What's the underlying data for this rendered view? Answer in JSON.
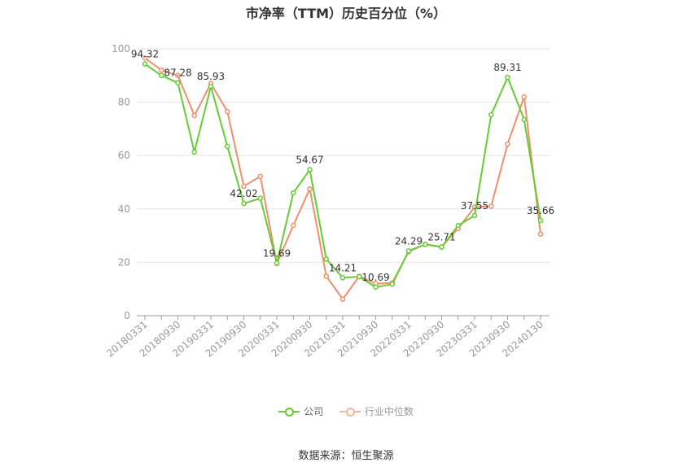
{
  "chart_data": {
    "type": "line",
    "title": "市净率（TTM）历史百分位（%）",
    "x": [
      "20180331",
      "20180630",
      "20180930",
      "20181231",
      "20190331",
      "20190630",
      "20190930",
      "20191231",
      "20200331",
      "20200630",
      "20200930",
      "20201231",
      "20210331",
      "20210630",
      "20210930",
      "20211231",
      "20220331",
      "20220630",
      "20220930",
      "20221231",
      "20230331",
      "20230630",
      "20230930",
      "20231231",
      "20240130"
    ],
    "x_tick_labels": [
      "20180331",
      "20180930",
      "20190331",
      "20190930",
      "20200331",
      "20200930",
      "20210331",
      "20210930",
      "20220331",
      "20220930",
      "20230331",
      "20230930",
      "20240130"
    ],
    "ylim": [
      0,
      100
    ],
    "y_ticks": [
      0,
      20,
      40,
      60,
      80,
      100
    ],
    "grid": true,
    "legend_position": "bottom",
    "series": [
      {
        "name": "公司",
        "color": "#66cc33",
        "values": [
          94.32,
          90.0,
          87.28,
          61.3,
          85.93,
          63.4,
          42.02,
          44.0,
          19.69,
          46.0,
          54.67,
          21.2,
          14.21,
          14.6,
          10.69,
          11.8,
          24.29,
          26.7,
          25.71,
          33.8,
          37.55,
          75.3,
          89.31,
          73.5,
          35.66
        ],
        "data_labels": {
          "0": "94.32",
          "2": "87.28",
          "4": "85.93",
          "6": "42.02",
          "8": "19.69",
          "10": "54.67",
          "12": "14.21",
          "14": "10.69",
          "16": "24.29",
          "18": "25.71",
          "20": "37.55",
          "22": "89.31",
          "24": "35.66"
        }
      },
      {
        "name": "行业中位数",
        "color": "#f0906a",
        "values": [
          96.5,
          92.0,
          90.0,
          75.0,
          87.0,
          76.5,
          48.5,
          52.2,
          19.5,
          33.8,
          47.5,
          14.8,
          6.2,
          14.8,
          12.0,
          12.3,
          24.0,
          26.8,
          25.8,
          32.7,
          40.7,
          41.0,
          64.3,
          82.0,
          30.6
        ]
      }
    ]
  },
  "source": "数据来源：恒生聚源"
}
